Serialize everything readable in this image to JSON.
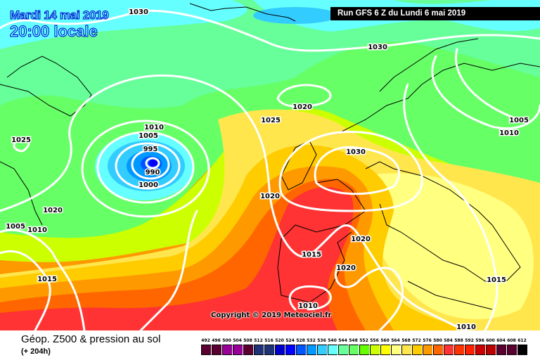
{
  "header": {
    "date": "Mardi 14 mai 2019",
    "time": "20:00 locale",
    "run": "Run GFS 6 Z du Lundi 6 mai 2019"
  },
  "map": {
    "copyright": "Copyright © 2019 Meteociel.fr",
    "isobar_labels": [
      "1030",
      "1030",
      "1020",
      "1025",
      "1010",
      "1005",
      "995",
      "990",
      "1000",
      "1025",
      "1030",
      "1010",
      "1005",
      "1020",
      "1020",
      "1005",
      "1010",
      "1020",
      "1015",
      "1020",
      "1015",
      "1015",
      "1010",
      "1010"
    ],
    "low_center_hPa": 990
  },
  "footer": {
    "title": "Géop. Z500 & pression au sol",
    "subtitle": "(+ 204h)"
  },
  "legend": {
    "values": [
      "492",
      "496",
      "500",
      "504",
      "508",
      "512",
      "516",
      "520",
      "524",
      "528",
      "532",
      "536",
      "540",
      "544",
      "548",
      "552",
      "556",
      "560",
      "564",
      "568",
      "572",
      "576",
      "580",
      "584",
      "588",
      "592",
      "596",
      "600",
      "604",
      "608",
      "612"
    ],
    "colors": [
      "#5a0030",
      "#5a0030",
      "#990099",
      "#990099",
      "#5a0030",
      "#1e3278",
      "#1e3278",
      "#0000cc",
      "#0000ff",
      "#0055ff",
      "#0099ff",
      "#33ccff",
      "#66ffff",
      "#66ff99",
      "#66ff66",
      "#66ff00",
      "#ccff00",
      "#ffff00",
      "#ffff80",
      "#ffe64d",
      "#ffcc00",
      "#ff9900",
      "#ff6600",
      "#ff3333",
      "#ff3300",
      "#ff2200",
      "#cc0000",
      "#bb0000",
      "#5a0030",
      "#5a0030",
      "#000000"
    ]
  }
}
